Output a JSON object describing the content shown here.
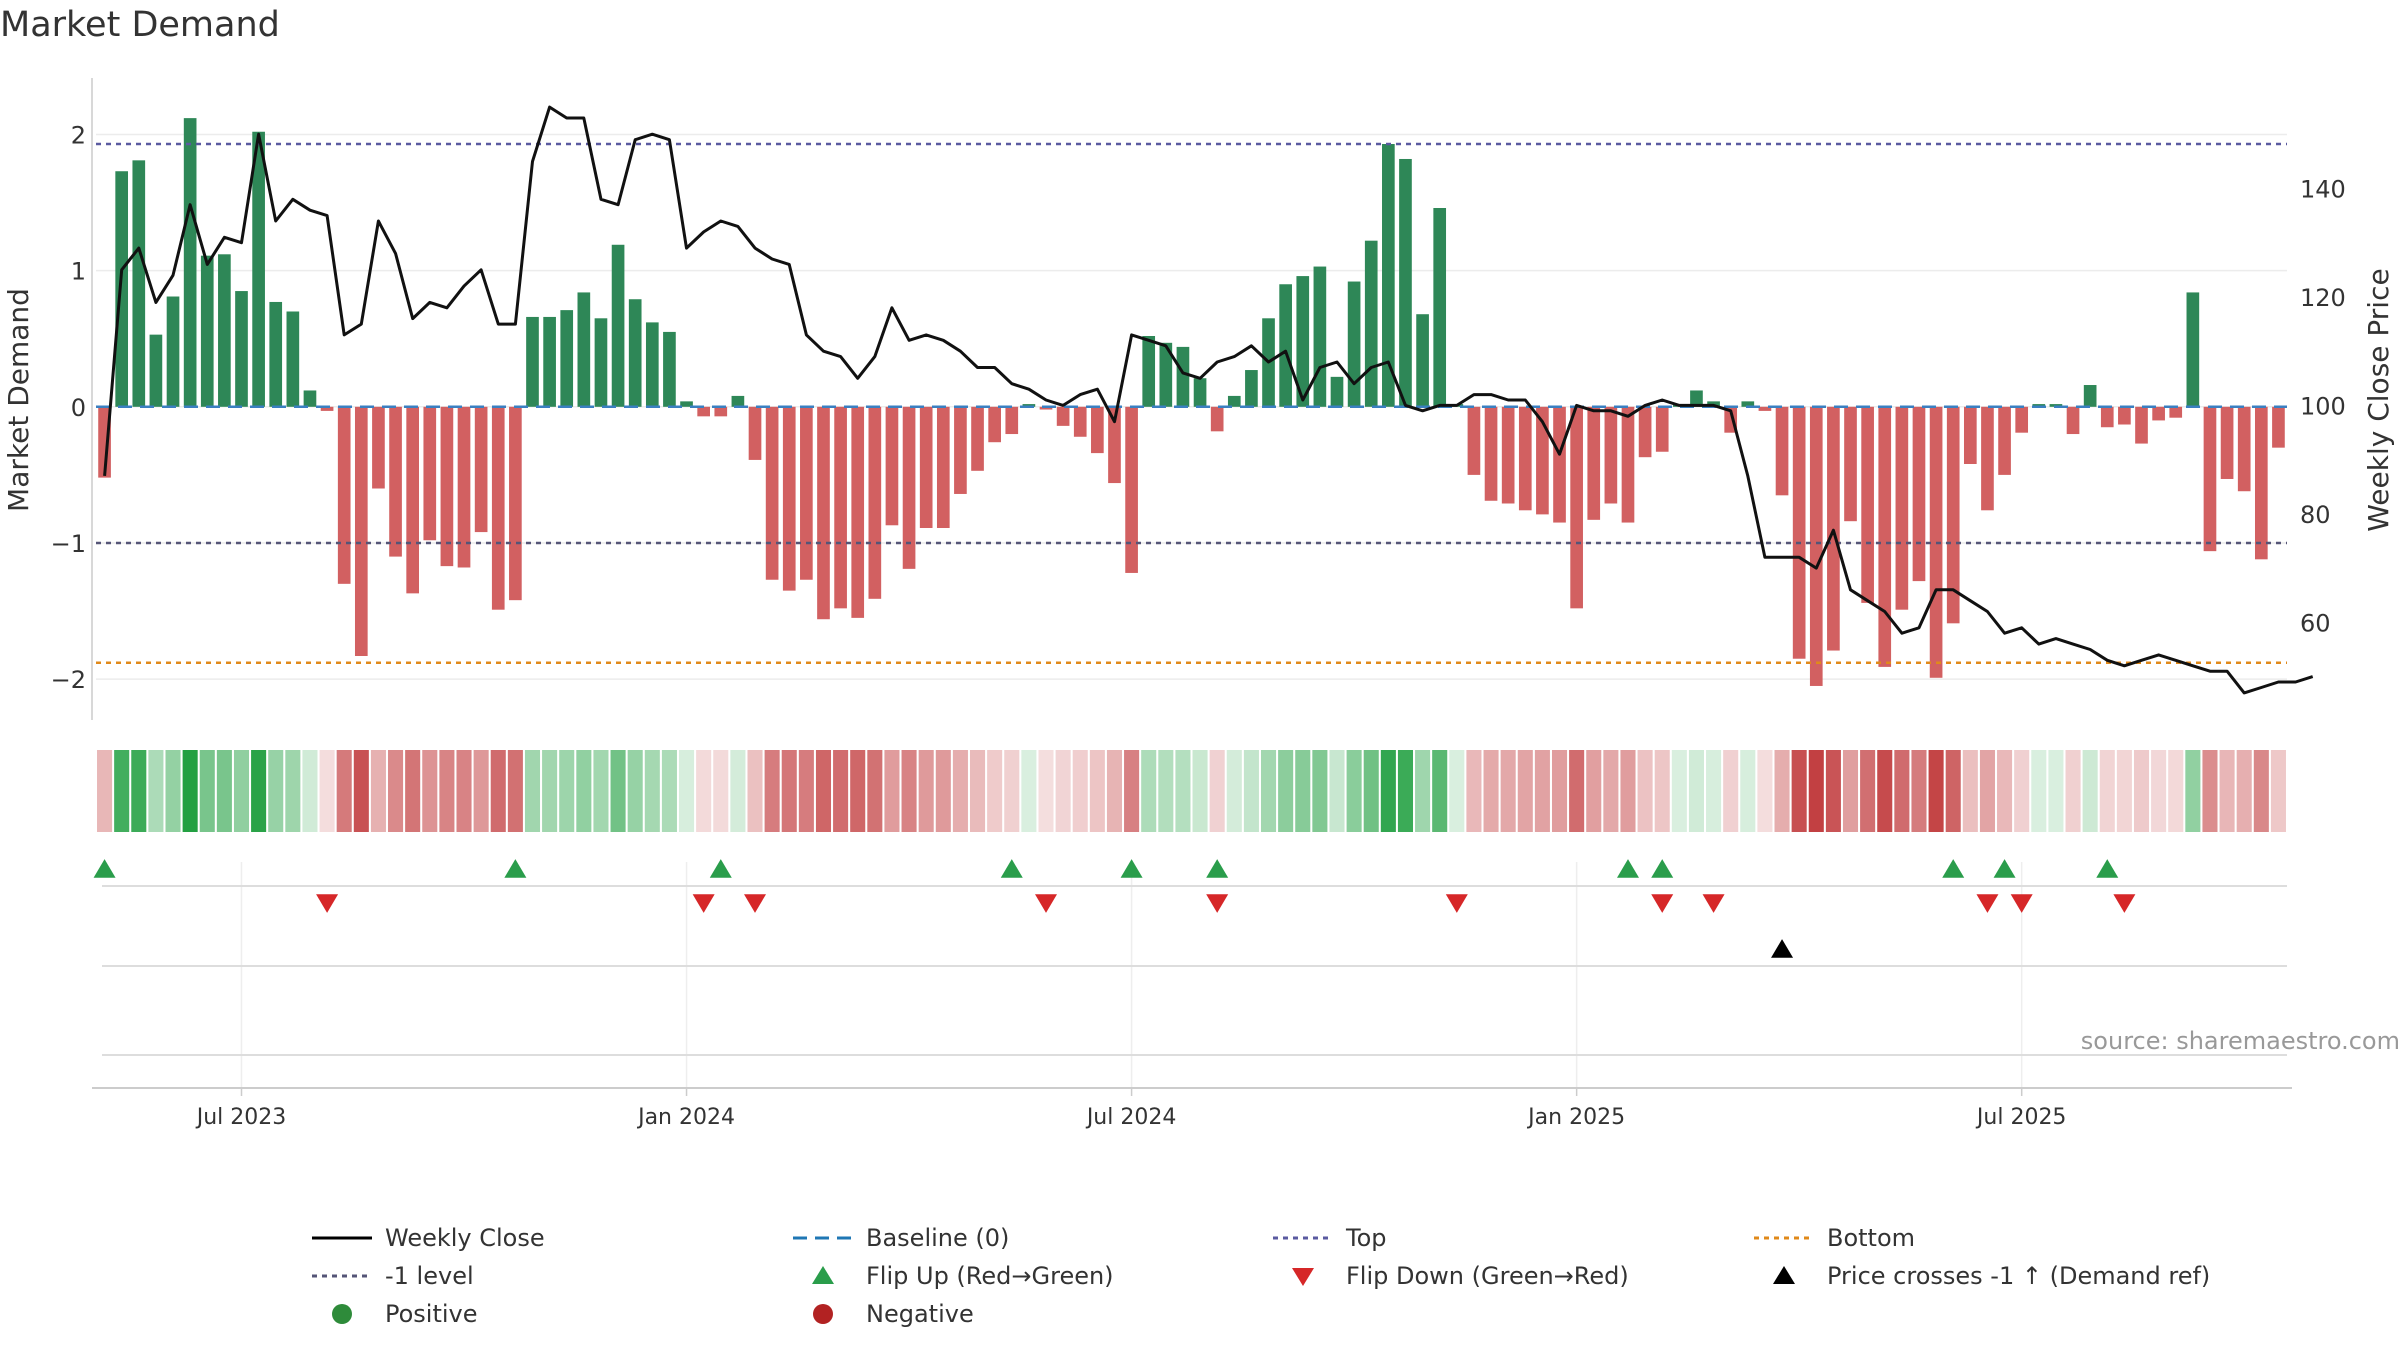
{
  "chart_data": {
    "type": "bar",
    "title": "Market Demand",
    "ylabel": "Market Demand",
    "ylabel_right": "Weekly Close Price",
    "ylim": [
      -2.3,
      2.4
    ],
    "ylim_right": [
      42,
      160
    ],
    "yticks": [
      2,
      1,
      0,
      -1,
      -2
    ],
    "ytick_labels": [
      "2",
      "1",
      "0",
      "−1",
      "−2"
    ],
    "yticks_right": [
      140,
      120,
      100,
      80,
      60
    ],
    "xticks": [
      {
        "label": "Jul 2023",
        "week": 8
      },
      {
        "label": "Jan 2024",
        "week": 34
      },
      {
        "label": "Jan 2025",
        "week": 86
      },
      {
        "label": "Jul 2024",
        "week": 60
      },
      {
        "label": "Jul 2025",
        "week": 112
      }
    ],
    "reference_lines": {
      "top": 1.93,
      "bottom": -1.88,
      "minus_one": -1.0,
      "baseline": 0
    },
    "demand": [
      -0.52,
      1.73,
      1.81,
      0.53,
      0.81,
      2.12,
      1.11,
      1.12,
      0.85,
      2.02,
      0.77,
      0.7,
      0.12,
      -0.03,
      -1.3,
      -1.83,
      -0.6,
      -1.1,
      -1.37,
      -0.98,
      -1.17,
      -1.18,
      -0.92,
      -1.49,
      -1.42,
      0.66,
      0.66,
      0.71,
      0.84,
      0.65,
      1.19,
      0.79,
      0.62,
      0.55,
      0.04,
      -0.07,
      -0.07,
      0.08,
      -0.39,
      -1.27,
      -1.35,
      -1.27,
      -1.56,
      -1.48,
      -1.55,
      -1.41,
      -0.87,
      -1.19,
      -0.89,
      -0.89,
      -0.64,
      -0.47,
      -0.26,
      -0.2,
      0.02,
      -0.02,
      -0.14,
      -0.22,
      -0.34,
      -0.56,
      -1.22,
      0.52,
      0.47,
      0.44,
      0.21,
      -0.18,
      0.08,
      0.27,
      0.65,
      0.9,
      0.96,
      1.03,
      0.22,
      0.92,
      1.22,
      1.93,
      1.82,
      0.68,
      1.46,
      0.02,
      -0.5,
      -0.69,
      -0.71,
      -0.76,
      -0.79,
      -0.85,
      -1.48,
      -0.83,
      -0.71,
      -0.85,
      -0.37,
      -0.33,
      0.02,
      0.12,
      0.04,
      -0.19,
      0.04,
      -0.03,
      -0.65,
      -1.85,
      -2.05,
      -1.79,
      -0.84,
      -1.44,
      -1.91,
      -1.49,
      -1.28,
      -1.99,
      -1.59,
      -0.42,
      -0.76,
      -0.5,
      -0.19,
      0.02,
      0.02,
      -0.2,
      0.16,
      -0.15,
      -0.13,
      -0.27,
      -0.1,
      -0.08,
      0.84,
      -1.06,
      -0.53,
      -0.62,
      -1.12,
      -0.3
    ],
    "close": [
      87,
      125,
      129,
      119,
      124,
      137,
      126,
      131,
      130,
      150,
      134,
      138,
      136,
      135,
      113,
      115,
      134,
      128,
      116,
      119,
      118,
      122,
      125,
      115,
      115,
      145,
      155,
      153,
      153,
      138,
      137,
      149,
      150,
      149,
      129,
      132,
      134,
      133,
      129,
      127,
      126,
      113,
      110,
      109,
      105,
      109,
      118,
      112,
      113,
      112,
      110,
      107,
      107,
      104,
      103,
      101,
      100,
      102,
      103,
      97,
      113,
      112,
      111,
      106,
      105,
      108,
      109,
      111,
      108,
      110,
      101,
      107,
      108,
      104,
      107,
      108,
      100,
      99,
      100,
      100,
      102,
      102,
      101,
      101,
      97,
      91,
      100,
      99,
      99,
      98,
      100,
      101,
      100,
      100,
      100,
      99,
      87,
      72,
      72,
      72,
      70,
      77,
      66,
      64,
      62,
      58,
      59,
      66,
      66,
      64,
      62,
      58,
      59,
      56,
      57,
      56,
      55,
      53,
      52,
      53,
      54,
      53,
      52,
      51,
      51,
      47,
      48,
      49,
      49,
      50
    ],
    "flip_up_weeks": [
      0,
      24,
      36,
      53,
      60,
      65,
      89,
      91,
      108,
      111,
      117
    ],
    "flip_down_weeks": [
      13,
      35,
      38,
      55,
      65,
      79,
      91,
      94,
      110,
      112,
      118
    ],
    "price_cross_weeks": [
      98
    ]
  },
  "source": "source: sharemaestro.com",
  "legend": [
    {
      "label": "Weekly Close",
      "symbol": "line",
      "color": "#000000"
    },
    {
      "label": "Baseline (0)",
      "symbol": "dash",
      "color": "#1f77b4"
    },
    {
      "label": "Top",
      "symbol": "dot",
      "color": "#5a5aa0"
    },
    {
      "label": "Bottom",
      "symbol": "dot",
      "color": "#e0891a"
    },
    {
      "label": "-1 level",
      "symbol": "dot",
      "color": "#555577"
    },
    {
      "label": "Flip Up (Red→Green)",
      "symbol": "tri-up",
      "color": "#2a9d4b"
    },
    {
      "label": "Flip Down (Green→Red)",
      "symbol": "tri-down",
      "color": "#d62728"
    },
    {
      "label": "Price crosses -1 ↑ (Demand ref)",
      "symbol": "tri-up",
      "color": "#000000"
    },
    {
      "label": "Positive",
      "symbol": "circle",
      "color": "#2e8b3a"
    },
    {
      "label": "Negative",
      "symbol": "circle",
      "color": "#b22222"
    }
  ],
  "colors": {
    "positive": "#2e8757",
    "negative": "#d26061",
    "close": "#111111",
    "baseline": "#3a7fc1"
  }
}
